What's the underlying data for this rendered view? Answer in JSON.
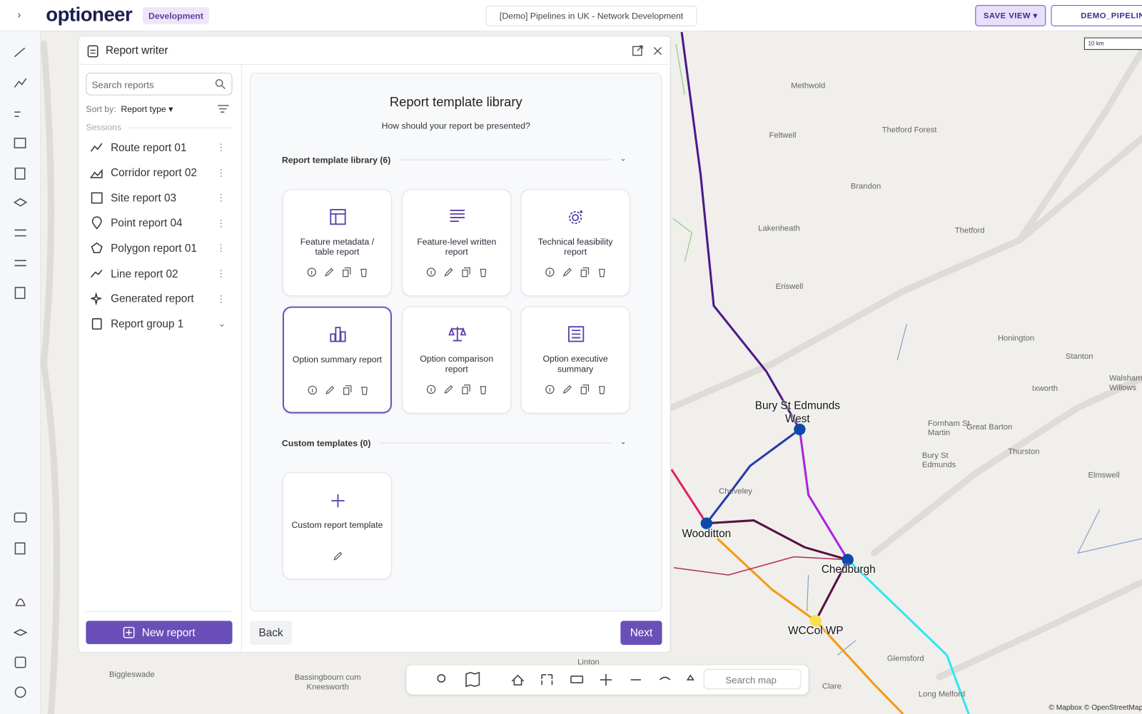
{
  "header": {
    "logo": "optioneer",
    "badge": "Development",
    "project": "[Demo] Pipelines in UK - Network Development",
    "save_view": "SAVE VIEW",
    "user": "DEMO_PIPELINE"
  },
  "panel": {
    "title": "Report writer",
    "search_placeholder": "Search reports",
    "sort_label": "Sort by:",
    "sort_value": "Report type",
    "section": "Sessions",
    "reports": [
      "Route report 01",
      "Corridor report 02",
      "Site report 03",
      "Point report 04",
      "Polygon report 01",
      "Line report 02",
      "Generated report",
      "Report group 1"
    ],
    "new_report": "New report"
  },
  "library": {
    "title": "Report template library",
    "subtitle": "How should your report be presented?",
    "group_library": "Report template library (6)",
    "templates": [
      "Feature metadata / table report",
      "Feature-level written report",
      "Technical feasibility report",
      "Option summary report",
      "Option comparison report",
      "Option executive summary"
    ],
    "group_custom": "Custom templates (0)",
    "custom_template": "Custom report template",
    "back": "Back",
    "next": "Next"
  },
  "map": {
    "labels": [
      "Methwold",
      "Feltwell",
      "Thetford Forest",
      "Brandon",
      "Lakenheath",
      "Thetford",
      "Eriswell",
      "Honington",
      "Stanton",
      "Ixworth",
      "Walsham le Willows",
      "Fornham St Martin",
      "Great Barton",
      "Thurston",
      "Bury St Edmunds",
      "Elmswell",
      "Glemsford",
      "Clare",
      "Long Melford",
      "Cheveley",
      "Linton",
      "Biggleswade",
      "Bassingbourn cum Kneesworth"
    ],
    "sites": [
      "Bury St Edmunds West",
      "Wooditton",
      "Chedburgh",
      "WCCol WP"
    ],
    "search": "Search map",
    "scale": "10 km",
    "attribution": "© Mapbox © OpenStreetMap"
  }
}
